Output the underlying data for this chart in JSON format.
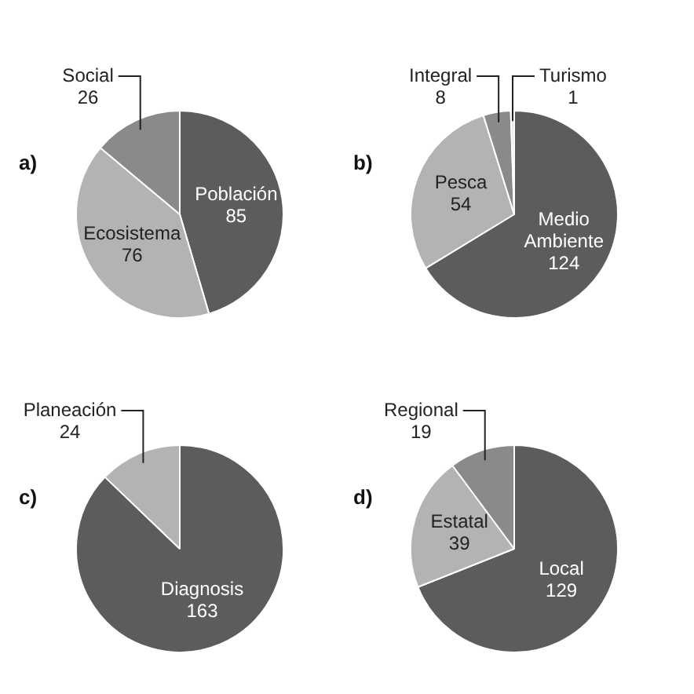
{
  "chart_data": [
    {
      "type": "pie",
      "title": "a)",
      "categories": [
        "Población",
        "Ecosistema",
        "Social"
      ],
      "values": [
        85,
        76,
        26
      ],
      "colors": [
        "#5c5c5c",
        "#b3b3b3",
        "#8a8a8a"
      ],
      "data_labels": true
    },
    {
      "type": "pie",
      "title": "b)",
      "categories": [
        "Medio Ambiente",
        "Pesca",
        "Integral",
        "Turismo"
      ],
      "values": [
        124,
        54,
        8,
        1
      ],
      "colors": [
        "#5c5c5c",
        "#b3b3b3",
        "#8a8a8a",
        "#e6e6e6"
      ],
      "data_labels": true
    },
    {
      "type": "pie",
      "title": "c)",
      "categories": [
        "Diagnosis",
        "Planeación"
      ],
      "values": [
        163,
        24
      ],
      "colors": [
        "#5c5c5c",
        "#b3b3b3"
      ],
      "data_labels": true
    },
    {
      "type": "pie",
      "title": "d)",
      "categories": [
        "Local",
        "Estatal",
        "Regional"
      ],
      "values": [
        129,
        39,
        19
      ],
      "colors": [
        "#5c5c5c",
        "#b3b3b3",
        "#8a8a8a"
      ],
      "data_labels": true
    }
  ]
}
